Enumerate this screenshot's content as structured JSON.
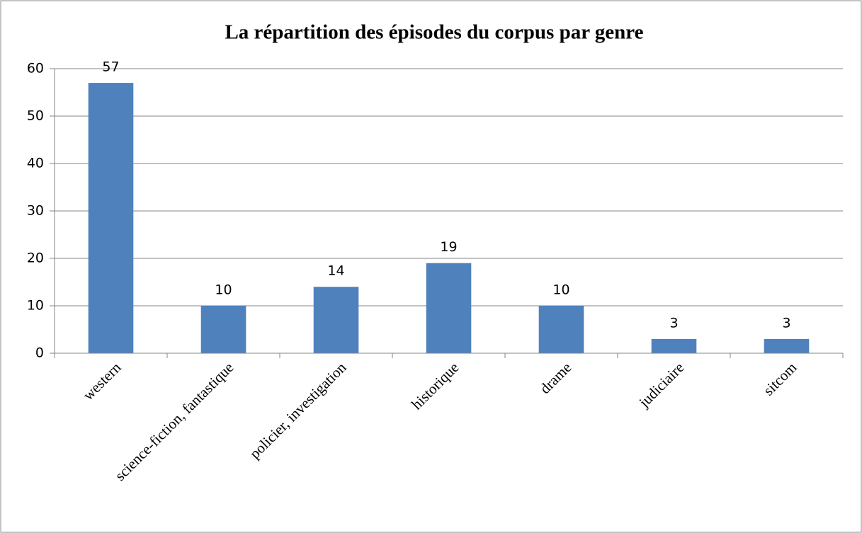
{
  "chart_data": {
    "type": "bar",
    "title": "La répartition des épisodes du corpus par genre",
    "categories": [
      "western",
      "science-fiction, fantastique",
      "policier, investigation",
      "historique",
      "drame",
      "judiciaire",
      "sitcom"
    ],
    "values": [
      57,
      10,
      14,
      19,
      10,
      3,
      3
    ],
    "color": "#4f81bd",
    "ylim": [
      0,
      60
    ],
    "yticks": [
      0,
      10,
      20,
      30,
      40,
      50,
      60
    ],
    "grid": true
  }
}
